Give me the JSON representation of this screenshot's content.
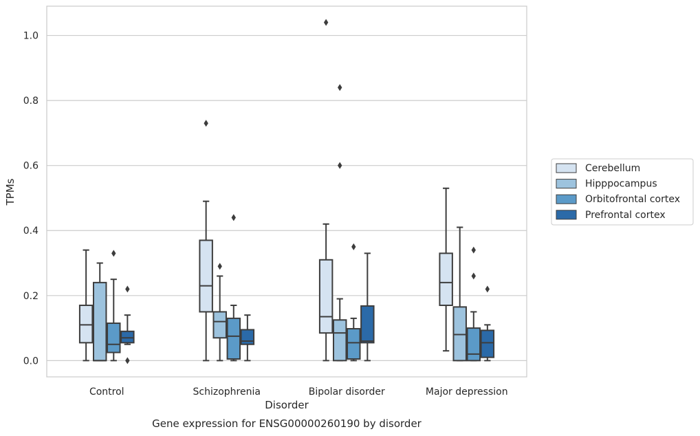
{
  "chart_data": {
    "type": "box",
    "caption": "Gene expression for ENSG00000260190 by disorder",
    "xlabel": "Disorder",
    "ylabel": "TPMs",
    "ylim": [
      -0.05,
      1.09
    ],
    "yticks": [
      "0.0",
      "0.2",
      "0.4",
      "0.6",
      "0.8",
      "1.0"
    ],
    "grid": true,
    "legend_position": "right",
    "categories": [
      "Control",
      "Schizophrenia",
      "Bipolar disorder",
      "Major depression"
    ],
    "series": [
      {
        "name": "Cerebellum",
        "color": "#d5e3f1",
        "boxes": [
          {
            "whislo": 0.0,
            "q1": 0.055,
            "med": 0.11,
            "q3": 0.17,
            "whishi": 0.34,
            "fliers": []
          },
          {
            "whislo": 0.0,
            "q1": 0.15,
            "med": 0.23,
            "q3": 0.37,
            "whishi": 0.49,
            "fliers": [
              0.73
            ]
          },
          {
            "whislo": 0.0,
            "q1": 0.085,
            "med": 0.135,
            "q3": 0.31,
            "whishi": 0.42,
            "fliers": [
              1.04
            ]
          },
          {
            "whislo": 0.03,
            "q1": 0.17,
            "med": 0.24,
            "q3": 0.33,
            "whishi": 0.53,
            "fliers": []
          }
        ]
      },
      {
        "name": "Hipppocampus",
        "color": "#9dc3de",
        "boxes": [
          {
            "whislo": 0.0,
            "q1": 0.0,
            "med": 0.0,
            "q3": 0.24,
            "whishi": 0.3,
            "fliers": []
          },
          {
            "whislo": 0.0,
            "q1": 0.07,
            "med": 0.12,
            "q3": 0.15,
            "whishi": 0.26,
            "fliers": [
              0.29
            ]
          },
          {
            "whislo": 0.0,
            "q1": 0.0,
            "med": 0.085,
            "q3": 0.125,
            "whishi": 0.19,
            "fliers": [
              0.84,
              0.6
            ]
          },
          {
            "whislo": 0.0,
            "q1": 0.0,
            "med": 0.08,
            "q3": 0.165,
            "whishi": 0.41,
            "fliers": []
          }
        ]
      },
      {
        "name": "Orbitofrontal cortex",
        "color": "#5b9ac8",
        "boxes": [
          {
            "whislo": 0.0,
            "q1": 0.025,
            "med": 0.05,
            "q3": 0.115,
            "whishi": 0.25,
            "fliers": [
              0.33
            ]
          },
          {
            "whislo": 0.0,
            "q1": 0.005,
            "med": 0.075,
            "q3": 0.13,
            "whishi": 0.17,
            "fliers": [
              0.44
            ]
          },
          {
            "whislo": 0.0,
            "q1": 0.005,
            "med": 0.055,
            "q3": 0.098,
            "whishi": 0.13,
            "fliers": [
              0.35
            ]
          },
          {
            "whislo": 0.0,
            "q1": 0.0,
            "med": 0.02,
            "q3": 0.1,
            "whishi": 0.15,
            "fliers": [
              0.34,
              0.26
            ]
          }
        ]
      },
      {
        "name": "Prefrontal cortex",
        "color": "#2b6aa8",
        "boxes": [
          {
            "whislo": 0.05,
            "q1": 0.055,
            "med": 0.07,
            "q3": 0.09,
            "whishi": 0.14,
            "fliers": [
              0.22,
              0.0
            ]
          },
          {
            "whislo": 0.0,
            "q1": 0.05,
            "med": 0.06,
            "q3": 0.095,
            "whishi": 0.14,
            "fliers": []
          },
          {
            "whislo": 0.0,
            "q1": 0.055,
            "med": 0.06,
            "q3": 0.168,
            "whishi": 0.33,
            "fliers": []
          },
          {
            "whislo": 0.0,
            "q1": 0.01,
            "med": 0.055,
            "q3": 0.093,
            "whishi": 0.11,
            "fliers": [
              0.22
            ]
          }
        ]
      }
    ]
  }
}
